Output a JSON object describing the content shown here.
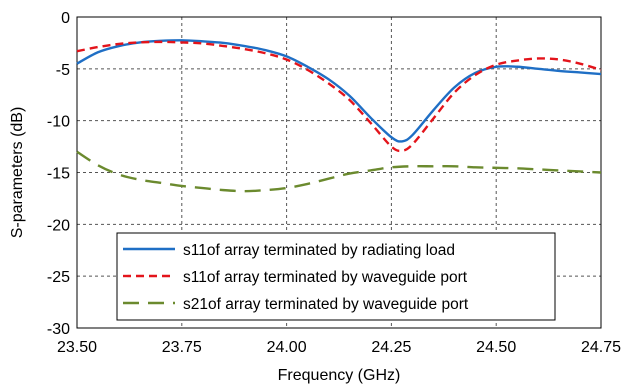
{
  "chart_data": {
    "type": "line",
    "title": "",
    "xlabel": "Frequency (GHz)",
    "ylabel": "S-parameters (dB)",
    "xlim": [
      23.5,
      24.75
    ],
    "ylim": [
      -30,
      0
    ],
    "xticks": [
      23.5,
      23.75,
      24.0,
      24.25,
      24.5,
      24.75
    ],
    "xtick_labels": [
      "23.50",
      "23.75",
      "24.00",
      "24.25",
      "24.50",
      "24.75"
    ],
    "yticks": [
      0,
      -5,
      -10,
      -15,
      -20,
      -25,
      -30
    ],
    "ytick_labels": [
      "0",
      "-5",
      "-10",
      "-15",
      "-20",
      "-25",
      "-30"
    ],
    "grid": "dashed",
    "legend_position": "bottom-center",
    "series": [
      {
        "name": "s11of array terminated by radiating load",
        "color": "#1f6fc5",
        "style": "solid",
        "x": [
          23.5,
          23.55,
          23.6,
          23.65,
          23.7,
          23.75,
          23.8,
          23.85,
          23.9,
          23.95,
          24.0,
          24.05,
          24.1,
          24.15,
          24.2,
          24.25,
          24.275,
          24.3,
          24.35,
          24.4,
          24.45,
          24.5,
          24.55,
          24.6,
          24.65,
          24.7,
          24.75
        ],
        "y": [
          -4.5,
          -3.4,
          -2.8,
          -2.45,
          -2.3,
          -2.25,
          -2.35,
          -2.5,
          -2.8,
          -3.2,
          -3.8,
          -4.8,
          -6.0,
          -7.6,
          -9.7,
          -11.6,
          -12.0,
          -11.4,
          -9.0,
          -6.8,
          -5.4,
          -4.8,
          -4.8,
          -5.0,
          -5.2,
          -5.35,
          -5.5
        ]
      },
      {
        "name": "s11of array terminated by waveguide port",
        "color": "#e3141b",
        "style": "dashed",
        "x": [
          23.5,
          23.55,
          23.6,
          23.65,
          23.7,
          23.75,
          23.8,
          23.85,
          23.9,
          23.95,
          24.0,
          24.05,
          24.1,
          24.15,
          24.2,
          24.25,
          24.275,
          24.3,
          24.35,
          24.4,
          24.45,
          24.5,
          24.55,
          24.6,
          24.65,
          24.7,
          24.75
        ],
        "y": [
          -3.3,
          -2.9,
          -2.6,
          -2.45,
          -2.4,
          -2.45,
          -2.55,
          -2.8,
          -3.1,
          -3.5,
          -4.1,
          -5.1,
          -6.4,
          -8.0,
          -10.2,
          -12.5,
          -12.9,
          -12.3,
          -9.8,
          -7.3,
          -5.6,
          -4.6,
          -4.2,
          -4.0,
          -4.1,
          -4.5,
          -5.1
        ]
      },
      {
        "name": "s21of array terminated by waveguide port",
        "color": "#6b8a2e",
        "style": "longdash",
        "x": [
          23.5,
          23.55,
          23.6,
          23.65,
          23.7,
          23.75,
          23.8,
          23.85,
          23.9,
          23.95,
          24.0,
          24.05,
          24.1,
          24.15,
          24.2,
          24.25,
          24.3,
          24.35,
          24.4,
          24.45,
          24.5,
          24.55,
          24.6,
          24.65,
          24.7,
          24.75
        ],
        "y": [
          -13.0,
          -14.3,
          -15.2,
          -15.7,
          -16.0,
          -16.3,
          -16.5,
          -16.7,
          -16.8,
          -16.7,
          -16.5,
          -16.1,
          -15.6,
          -15.1,
          -14.8,
          -14.5,
          -14.4,
          -14.4,
          -14.4,
          -14.5,
          -14.55,
          -14.6,
          -14.7,
          -14.8,
          -14.9,
          -15.0
        ]
      }
    ]
  }
}
